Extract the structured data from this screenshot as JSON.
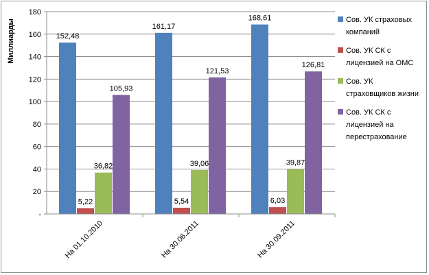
{
  "chart_data": {
    "type": "bar",
    "title": "",
    "xlabel": "",
    "ylabel": "Миллиарды",
    "ylim": [
      0,
      180
    ],
    "ytick_step": 20,
    "ytick_labels": [
      "-",
      "20",
      "40",
      "60",
      "80",
      "100",
      "120",
      "140",
      "160",
      "180"
    ],
    "grid": true,
    "legend_position": "right",
    "categories": [
      "На 01.10.2010",
      "На 30.06.2011",
      "На 30.09.2011"
    ],
    "series": [
      {
        "name": "Сов. УК страховых компаний",
        "legend_lines": [
          "Сов. УК страховых",
          "компаний"
        ],
        "color": "#4f81bd",
        "values": [
          152.48,
          161.17,
          168.61
        ],
        "labels": [
          "152,48",
          "161,17",
          "168,61"
        ]
      },
      {
        "name": "Сов. УК СК с лицензией на ОМС",
        "legend_lines": [
          "Сов. УК СК с",
          "лицензией на ОМС"
        ],
        "color": "#c0504d",
        "values": [
          5.22,
          5.54,
          6.03
        ],
        "labels": [
          "5,22",
          "5,54",
          "6,03"
        ]
      },
      {
        "name": "Сов. УК страховщиков жизни",
        "legend_lines": [
          "Сов. УК",
          "страховщиков жизни"
        ],
        "color": "#9bbb59",
        "values": [
          36.82,
          39.06,
          39.87
        ],
        "labels": [
          "36,82",
          "39,06",
          "39,87"
        ]
      },
      {
        "name": "Сов. УК СК с лицензией на перестрахование",
        "legend_lines": [
          "Сов. УК СК с",
          "лицензией на",
          "перестрахование"
        ],
        "color": "#8064a2",
        "values": [
          105.93,
          121.53,
          126.81
        ],
        "labels": [
          "105,93",
          "121,53",
          "126,81"
        ]
      }
    ]
  }
}
